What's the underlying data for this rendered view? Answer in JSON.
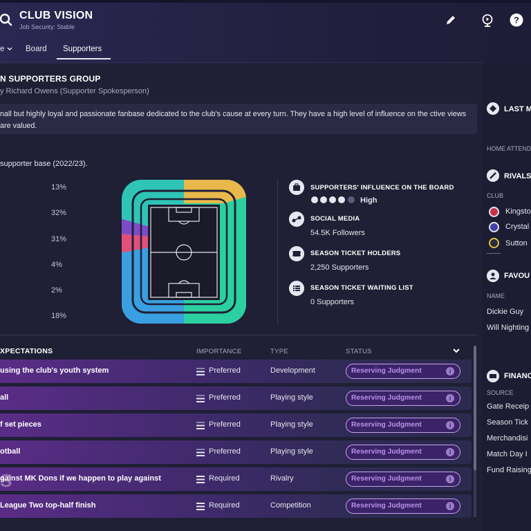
{
  "header": {
    "title": "CLUB VISION",
    "subtitle": "Job Security: Stable",
    "tabs": [
      {
        "label": "e"
      },
      {
        "label": "Board"
      },
      {
        "label": "Supporters"
      }
    ]
  },
  "group": {
    "title": "N SUPPORTERS GROUP",
    "by": "y Richard Owens (Supporter Spokesperson)",
    "description": "nall but highly loyal and passionate fanbase dedicated to the club's cause at every turn. They have a high level of influence on the ctive views are valued.",
    "base_label": "supporter base (2022/23)."
  },
  "percentages": [
    "13%",
    "32%",
    "31%",
    "4%",
    "2%",
    "18%"
  ],
  "info": {
    "influence_title": "SUPPORTERS' INFLUENCE ON THE BOARD",
    "influence_value": "High",
    "influence_level": 4,
    "influence_max": 5,
    "social_title": "SOCIAL MEDIA",
    "social_value": "54.5K Followers",
    "season_title": "SEASON TICKET HOLDERS",
    "season_value": "2,250 Supporters",
    "waiting_title": "SEASON TICKET WAITING LIST",
    "waiting_value": "0 Supporters"
  },
  "table": {
    "headers": {
      "expectations": "XPECTATIONS",
      "importance": "IMPORTANCE",
      "type": "TYPE",
      "status": "STATUS"
    },
    "rows": [
      {
        "label": "using the club's youth system",
        "importance": "Preferred",
        "type": "Development",
        "status": "Reserving Judgment"
      },
      {
        "label": "all",
        "importance": "Preferred",
        "type": "Playing style",
        "status": "Reserving Judgment"
      },
      {
        "label": "f set pieces",
        "importance": "Preferred",
        "type": "Playing style",
        "status": "Reserving Judgment"
      },
      {
        "label": "otball",
        "importance": "Preferred",
        "type": "Playing style",
        "status": "Reserving Judgment"
      },
      {
        "label": "gainst MK Dons if we happen to play against",
        "importance": "Required",
        "type": "Rivalry",
        "status": "Reserving Judgment"
      },
      {
        "label": "League Two top-half finish",
        "importance": "Required",
        "type": "Competition",
        "status": "Reserving Judgment"
      }
    ]
  },
  "right": {
    "last_title": "LAST M",
    "home_label": "HOME ATTEND",
    "rivals_title": "RIVALS",
    "club_label": "CLUB",
    "clubs": [
      "Kingsto",
      "Crystal",
      "Sutton"
    ],
    "fav_title": "FAVOU",
    "name_label": "NAME",
    "names": [
      "Dickie Guy",
      "Will Nighting"
    ],
    "fin_title": "FINANC",
    "source_label": "SOURCE",
    "sources": [
      "Gate Receip",
      "Season Tick",
      "Merchandisi",
      "Match Day I",
      "Fund Raising"
    ]
  },
  "colors": {
    "accent": "#5a2c86",
    "status": "#b991ea"
  }
}
